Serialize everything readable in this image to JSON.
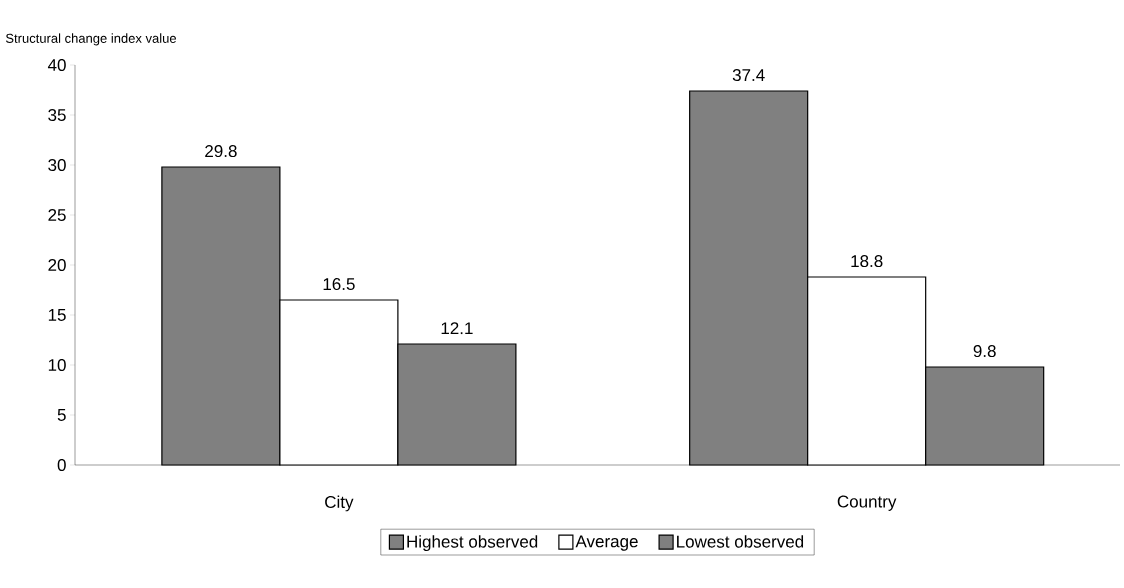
{
  "chart_data": {
    "type": "bar",
    "ylabel": "Structural change index value",
    "categories": [
      "City",
      "Country"
    ],
    "series": [
      {
        "name": "Highest observed",
        "color": "#808080",
        "values": [
          29.8,
          37.4
        ]
      },
      {
        "name": "Average",
        "color": "#ffffff",
        "values": [
          16.5,
          18.8
        ]
      },
      {
        "name": "Lowest observed",
        "color": "#808080",
        "values": [
          12.1,
          9.8
        ]
      }
    ],
    "ylim": [
      0,
      40
    ],
    "yticks": [
      0,
      5,
      10,
      15,
      20,
      25,
      30,
      35,
      40
    ],
    "data_labels": true,
    "legend": "bottom"
  }
}
